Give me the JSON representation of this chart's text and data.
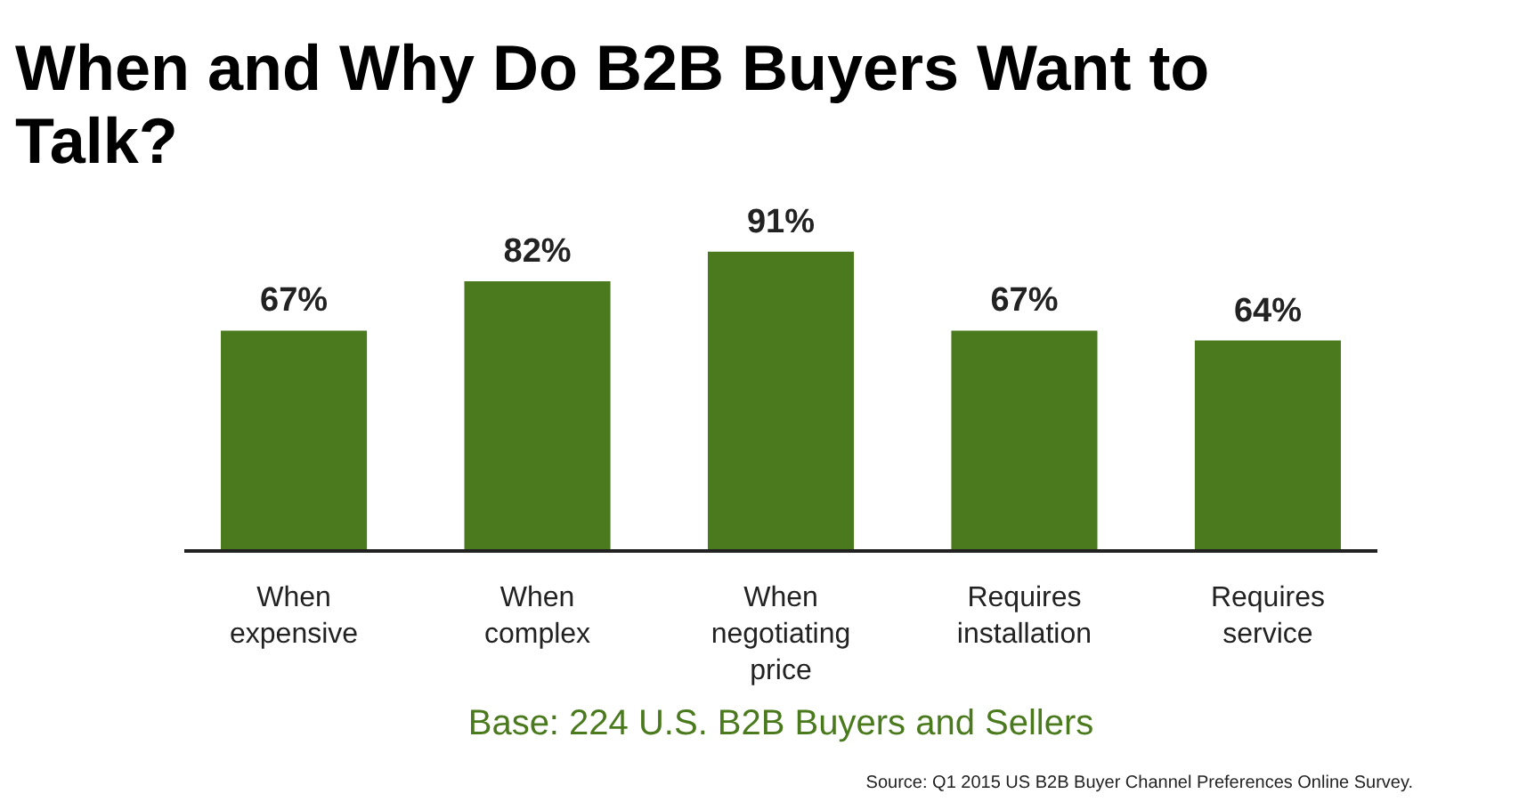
{
  "chart_data": {
    "type": "bar",
    "title": "When and Why Do B2B Buyers Want to Talk?",
    "categories": [
      "When expensive",
      "When complex",
      "When negotiating price",
      "Requires installation",
      "Requires service"
    ],
    "values": [
      67,
      82,
      91,
      67,
      64
    ],
    "value_labels": [
      "67%",
      "82%",
      "91%",
      "67%",
      "64%"
    ],
    "color": "#4a7a1d",
    "grid": false,
    "annotations": [
      "Base: 224 U.S. B2B Buyers and Sellers",
      "Source: Q1 2015 US B2B Buyer Channel Preferences Online Survey."
    ]
  }
}
